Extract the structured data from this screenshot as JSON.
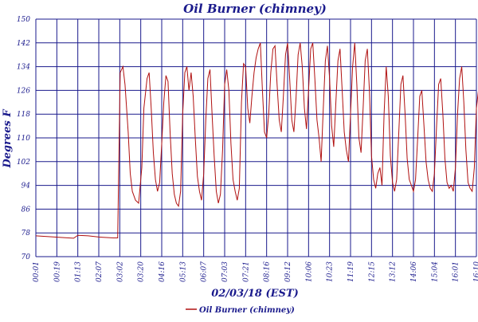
{
  "chart_data": {
    "type": "line",
    "title": "Oil Burner (chimney)",
    "xlabel": "02/03/18 (EST)",
    "ylabel": "Degrees F",
    "ylim": [
      70,
      150
    ],
    "yticks": [
      70,
      78,
      86,
      94,
      102,
      110,
      118,
      126,
      134,
      142,
      150
    ],
    "xticks": [
      "00:01",
      "00:19",
      "01:13",
      "02:07",
      "03:02",
      "03:20",
      "04:16",
      "05:13",
      "06:07",
      "07:03",
      "07:21",
      "08:16",
      "09:12",
      "10:06",
      "10:23",
      "11:19",
      "12:15",
      "13:12",
      "14:06",
      "15:04",
      "16:01",
      "16:10"
    ],
    "grid": true,
    "legend": {
      "position": "bottom-center",
      "entries": [
        "Oil Burner (chimney)"
      ]
    },
    "colors": {
      "series": "#b01010",
      "grid": "#1a1a8c",
      "text": "#1a1a8c"
    },
    "series": [
      {
        "name": "Oil Burner (chimney)",
        "values": [
          [
            0.0,
            77.0
          ],
          [
            0.9,
            76.6
          ],
          [
            1.4,
            76.4
          ],
          [
            1.8,
            76.2
          ],
          [
            2.0,
            77.2
          ],
          [
            2.5,
            77.0
          ],
          [
            3.0,
            76.6
          ],
          [
            3.7,
            76.3
          ],
          [
            3.9,
            76.3
          ],
          [
            4.02,
            132
          ],
          [
            4.15,
            134
          ],
          [
            4.25,
            128
          ],
          [
            4.4,
            112
          ],
          [
            4.5,
            98
          ],
          [
            4.6,
            92
          ],
          [
            4.75,
            89
          ],
          [
            4.9,
            88
          ],
          [
            5.05,
            100
          ],
          [
            5.15,
            120
          ],
          [
            5.3,
            130
          ],
          [
            5.4,
            132
          ],
          [
            5.5,
            120
          ],
          [
            5.6,
            105
          ],
          [
            5.7,
            96
          ],
          [
            5.8,
            92
          ],
          [
            5.9,
            95
          ],
          [
            6.0,
            108
          ],
          [
            6.1,
            122
          ],
          [
            6.2,
            131
          ],
          [
            6.3,
            129
          ],
          [
            6.4,
            112
          ],
          [
            6.5,
            98
          ],
          [
            6.6,
            91
          ],
          [
            6.7,
            88
          ],
          [
            6.8,
            87
          ],
          [
            6.9,
            92
          ],
          [
            7.0,
            118
          ],
          [
            7.1,
            132
          ],
          [
            7.2,
            134
          ],
          [
            7.3,
            126
          ],
          [
            7.4,
            132
          ],
          [
            7.5,
            124
          ],
          [
            7.6,
            110
          ],
          [
            7.7,
            97
          ],
          [
            7.8,
            92
          ],
          [
            7.9,
            89
          ],
          [
            8.0,
            98
          ],
          [
            8.1,
            116
          ],
          [
            8.2,
            130
          ],
          [
            8.3,
            133
          ],
          [
            8.4,
            118
          ],
          [
            8.5,
            104
          ],
          [
            8.6,
            92
          ],
          [
            8.7,
            88
          ],
          [
            8.8,
            91
          ],
          [
            8.9,
            106
          ],
          [
            9.0,
            128
          ],
          [
            9.1,
            133
          ],
          [
            9.2,
            126
          ],
          [
            9.3,
            108
          ],
          [
            9.4,
            96
          ],
          [
            9.5,
            92
          ],
          [
            9.6,
            89
          ],
          [
            9.7,
            93
          ],
          [
            9.8,
            122
          ],
          [
            9.9,
            135
          ],
          [
            10.0,
            134
          ],
          [
            10.1,
            120
          ],
          [
            10.2,
            115
          ],
          [
            10.3,
            124
          ],
          [
            10.4,
            132
          ],
          [
            10.5,
            137
          ],
          [
            10.6,
            140
          ],
          [
            10.7,
            142
          ],
          [
            10.8,
            126
          ],
          [
            10.9,
            112
          ],
          [
            11.0,
            110
          ],
          [
            11.1,
            118
          ],
          [
            11.2,
            132
          ],
          [
            11.3,
            140
          ],
          [
            11.4,
            141
          ],
          [
            11.5,
            128
          ],
          [
            11.6,
            116
          ],
          [
            11.7,
            112
          ],
          [
            11.8,
            124
          ],
          [
            11.9,
            138
          ],
          [
            12.0,
            142
          ],
          [
            12.1,
            130
          ],
          [
            12.2,
            116
          ],
          [
            12.3,
            112
          ],
          [
            12.4,
            123
          ],
          [
            12.5,
            138
          ],
          [
            12.6,
            142
          ],
          [
            12.7,
            134
          ],
          [
            12.8,
            120
          ],
          [
            12.9,
            113
          ],
          [
            13.0,
            126
          ],
          [
            13.1,
            140
          ],
          [
            13.2,
            142
          ],
          [
            13.3,
            130
          ],
          [
            13.4,
            116
          ],
          [
            13.5,
            110
          ],
          [
            13.6,
            102
          ],
          [
            13.7,
            120
          ],
          [
            13.8,
            136
          ],
          [
            13.9,
            141
          ],
          [
            14.0,
            130
          ],
          [
            14.1,
            114
          ],
          [
            14.2,
            107
          ],
          [
            14.3,
            122
          ],
          [
            14.4,
            136
          ],
          [
            14.5,
            140
          ],
          [
            14.6,
            126
          ],
          [
            14.7,
            112
          ],
          [
            14.8,
            106
          ],
          [
            14.9,
            102
          ],
          [
            15.0,
            118
          ],
          [
            15.1,
            134
          ],
          [
            15.2,
            142
          ],
          [
            15.3,
            128
          ],
          [
            15.4,
            110
          ],
          [
            15.5,
            105
          ],
          [
            15.6,
            120
          ],
          [
            15.7,
            136
          ],
          [
            15.8,
            140
          ],
          [
            15.9,
            126
          ],
          [
            16.0,
            104
          ],
          [
            16.1,
            96
          ],
          [
            16.2,
            93
          ],
          [
            16.3,
            98
          ],
          [
            16.4,
            100
          ],
          [
            16.5,
            94
          ],
          [
            16.6,
            118
          ],
          [
            16.7,
            134
          ],
          [
            16.8,
            124
          ],
          [
            16.9,
            104
          ],
          [
            17.0,
            95
          ],
          [
            17.1,
            92
          ],
          [
            17.2,
            96
          ],
          [
            17.3,
            112
          ],
          [
            17.4,
            128
          ],
          [
            17.5,
            131
          ],
          [
            17.6,
            118
          ],
          [
            17.7,
            103
          ],
          [
            17.8,
            96
          ],
          [
            17.9,
            94
          ],
          [
            18.0,
            92
          ],
          [
            18.1,
            96
          ],
          [
            18.2,
            110
          ],
          [
            18.3,
            124
          ],
          [
            18.4,
            126
          ],
          [
            18.5,
            114
          ],
          [
            18.6,
            102
          ],
          [
            18.7,
            96
          ],
          [
            18.8,
            93
          ],
          [
            18.9,
            92
          ],
          [
            19.0,
            98
          ],
          [
            19.1,
            114
          ],
          [
            19.2,
            128
          ],
          [
            19.3,
            130
          ],
          [
            19.4,
            118
          ],
          [
            19.5,
            103
          ],
          [
            19.6,
            95
          ],
          [
            19.7,
            93
          ],
          [
            19.8,
            94
          ],
          [
            19.9,
            92
          ],
          [
            20.0,
            100
          ],
          [
            20.1,
            118
          ],
          [
            20.2,
            130
          ],
          [
            20.3,
            134
          ],
          [
            20.4,
            122
          ],
          [
            20.5,
            106
          ],
          [
            20.6,
            95
          ],
          [
            20.7,
            93
          ],
          [
            20.8,
            92
          ],
          [
            20.9,
            100
          ],
          [
            21.0,
            120
          ],
          [
            21.1,
            126
          ],
          [
            21.2,
            114
          ],
          [
            21.3,
            100
          ],
          [
            21.4,
            94
          ],
          [
            21.5,
            92
          ],
          [
            21.6,
            96
          ],
          [
            21.7,
            110
          ],
          [
            21.8,
            122
          ],
          [
            21.9,
            126
          ],
          [
            22.0,
            112
          ],
          [
            22.1,
            98
          ],
          [
            22.2,
            94
          ],
          [
            22.3,
            95
          ],
          [
            22.4,
            102
          ],
          [
            22.5,
            118
          ],
          [
            22.6,
            124
          ],
          [
            22.7,
            112
          ],
          [
            22.8,
            98
          ],
          [
            22.9,
            95
          ],
          [
            23.0,
            92
          ]
        ]
      }
    ]
  }
}
